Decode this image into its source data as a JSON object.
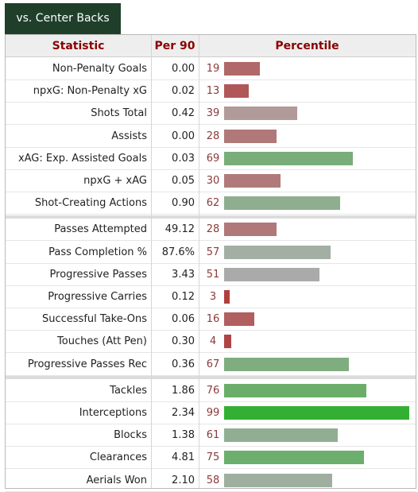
{
  "tab": {
    "label": "vs. Center Backs"
  },
  "header": {
    "stat": "Statistic",
    "per90": "Per 90",
    "percentile": "Percentile"
  },
  "groups": [
    [
      {
        "stat": "Non-Penalty Goals",
        "per90": "0.00",
        "percentile": 19,
        "color": "#b06868"
      },
      {
        "stat": "npxG: Non-Penalty xG",
        "per90": "0.02",
        "percentile": 13,
        "color": "#b05858"
      },
      {
        "stat": "Shots Total",
        "per90": "0.42",
        "percentile": 39,
        "color": "#b09a9a"
      },
      {
        "stat": "Assists",
        "per90": "0.00",
        "percentile": 28,
        "color": "#b07878"
      },
      {
        "stat": "xAG: Exp. Assisted Goals",
        "per90": "0.03",
        "percentile": 69,
        "color": "#79ad79"
      },
      {
        "stat": "npxG + xAG",
        "per90": "0.05",
        "percentile": 30,
        "color": "#b07a7a"
      },
      {
        "stat": "Shot-Creating Actions",
        "per90": "0.90",
        "percentile": 62,
        "color": "#8fae8f"
      }
    ],
    [
      {
        "stat": "Passes Attempted",
        "per90": "49.12",
        "percentile": 28,
        "color": "#b07878"
      },
      {
        "stat": "Pass Completion %",
        "per90": "87.6%",
        "percentile": 57,
        "color": "#a3afa3"
      },
      {
        "stat": "Progressive Passes",
        "per90": "3.43",
        "percentile": 51,
        "color": "#aaaaaa"
      },
      {
        "stat": "Progressive Carries",
        "per90": "0.12",
        "percentile": 3,
        "color": "#b04040"
      },
      {
        "stat": "Successful Take-Ons",
        "per90": "0.06",
        "percentile": 16,
        "color": "#b05e5e"
      },
      {
        "stat": "Touches (Att Pen)",
        "per90": "0.30",
        "percentile": 4,
        "color": "#b04444"
      },
      {
        "stat": "Progressive Passes Rec",
        "per90": "0.36",
        "percentile": 67,
        "color": "#80ad80"
      }
    ],
    [
      {
        "stat": "Tackles",
        "per90": "1.86",
        "percentile": 76,
        "color": "#6aae6a"
      },
      {
        "stat": "Interceptions",
        "per90": "2.34",
        "percentile": 99,
        "color": "#33b033"
      },
      {
        "stat": "Blocks",
        "per90": "1.38",
        "percentile": 61,
        "color": "#92ae92"
      },
      {
        "stat": "Clearances",
        "per90": "4.81",
        "percentile": 75,
        "color": "#6cae6c"
      },
      {
        "stat": "Aerials Won",
        "per90": "2.10",
        "percentile": 58,
        "color": "#9fae9f"
      }
    ]
  ]
}
